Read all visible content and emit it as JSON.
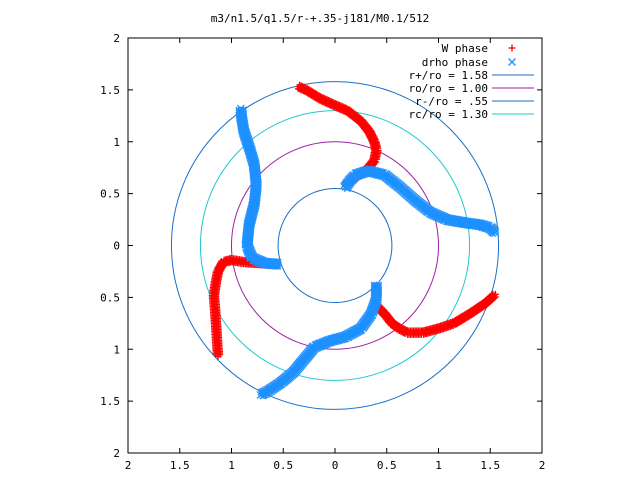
{
  "chart_data": {
    "type": "scatter",
    "title": "m3/n1.5/q1.5/r-+.35-j181/M0.1/512",
    "xlim": [
      -2,
      2
    ],
    "ylim": [
      -2,
      2
    ],
    "x_tick_labels": [
      "2",
      "1.5",
      "1",
      "0.5",
      "0",
      "0.5",
      "1",
      "1.5",
      "2"
    ],
    "y_tick_labels": [
      "2",
      "1.5",
      "1",
      "0.5",
      "0",
      "0.5",
      "1",
      "1.5",
      "2"
    ],
    "grid": false,
    "legend_position": "top-right",
    "series": [
      {
        "name": "W phase",
        "marker": "+",
        "color": "#ff0000",
        "arms": [
          {
            "x": [
              -0.35,
              -0.28,
              -0.15,
              -0.02,
              0.12,
              0.25,
              0.33,
              0.38,
              0.4,
              0.38,
              0.3,
              0.18,
              0.1
            ],
            "y": [
              1.53,
              1.5,
              1.42,
              1.36,
              1.3,
              1.2,
              1.1,
              1.0,
              0.92,
              0.82,
              0.72,
              0.65,
              0.58
            ]
          },
          {
            "x": [
              -0.55,
              -0.72,
              -0.88,
              -1.0,
              -1.08,
              -1.13,
              -1.15,
              -1.17,
              -1.16,
              -1.15,
              -1.13
            ],
            "y": [
              -0.18,
              -0.17,
              -0.16,
              -0.14,
              -0.16,
              -0.25,
              -0.35,
              -0.48,
              -0.6,
              -0.75,
              -1.07
            ]
          },
          {
            "x": [
              0.4,
              0.48,
              0.55,
              0.62,
              0.7,
              0.85,
              1.0,
              1.15,
              1.3,
              1.45,
              1.55
            ],
            "y": [
              -0.58,
              -0.66,
              -0.75,
              -0.8,
              -0.84,
              -0.84,
              -0.8,
              -0.75,
              -0.66,
              -0.56,
              -0.47
            ]
          }
        ]
      },
      {
        "name": "drho phase",
        "marker": "x",
        "color": "#1e90ff",
        "arms": [
          {
            "x": [
              0.1,
              0.14,
              0.2,
              0.32,
              0.48,
              0.62,
              0.78,
              0.92,
              1.08,
              1.25,
              1.4,
              1.5,
              1.55
            ],
            "y": [
              0.56,
              0.62,
              0.68,
              0.72,
              0.68,
              0.57,
              0.43,
              0.32,
              0.25,
              0.22,
              0.2,
              0.17,
              0.12
            ]
          },
          {
            "x": [
              -0.55,
              -0.68,
              -0.8,
              -0.85,
              -0.83,
              -0.78,
              -0.76,
              -0.78,
              -0.83,
              -0.88,
              -0.9,
              -0.91
            ],
            "y": [
              -0.18,
              -0.17,
              -0.12,
              0.0,
              0.2,
              0.4,
              0.58,
              0.78,
              0.95,
              1.1,
              1.22,
              1.32
            ]
          },
          {
            "x": [
              0.4,
              0.4,
              0.35,
              0.25,
              0.1,
              -0.05,
              -0.2,
              -0.3,
              -0.4,
              -0.52,
              -0.64,
              -0.72
            ],
            "y": [
              -0.38,
              -0.52,
              -0.66,
              -0.8,
              -0.88,
              -0.92,
              -0.98,
              -1.1,
              -1.22,
              -1.32,
              -1.4,
              -1.44
            ]
          }
        ]
      }
    ],
    "circles": [
      {
        "label": "r+/ro = 1.58",
        "radius": 1.58,
        "color": "#1a6fc8"
      },
      {
        "label": "ro/ro = 1.00",
        "radius": 1.0,
        "color": "#a020a0"
      },
      {
        "label": "r-/ro = .55",
        "radius": 0.55,
        "color": "#1a6fc8"
      },
      {
        "label": "rc/ro = 1.30",
        "radius": 1.3,
        "color": "#20c8d0"
      }
    ]
  }
}
